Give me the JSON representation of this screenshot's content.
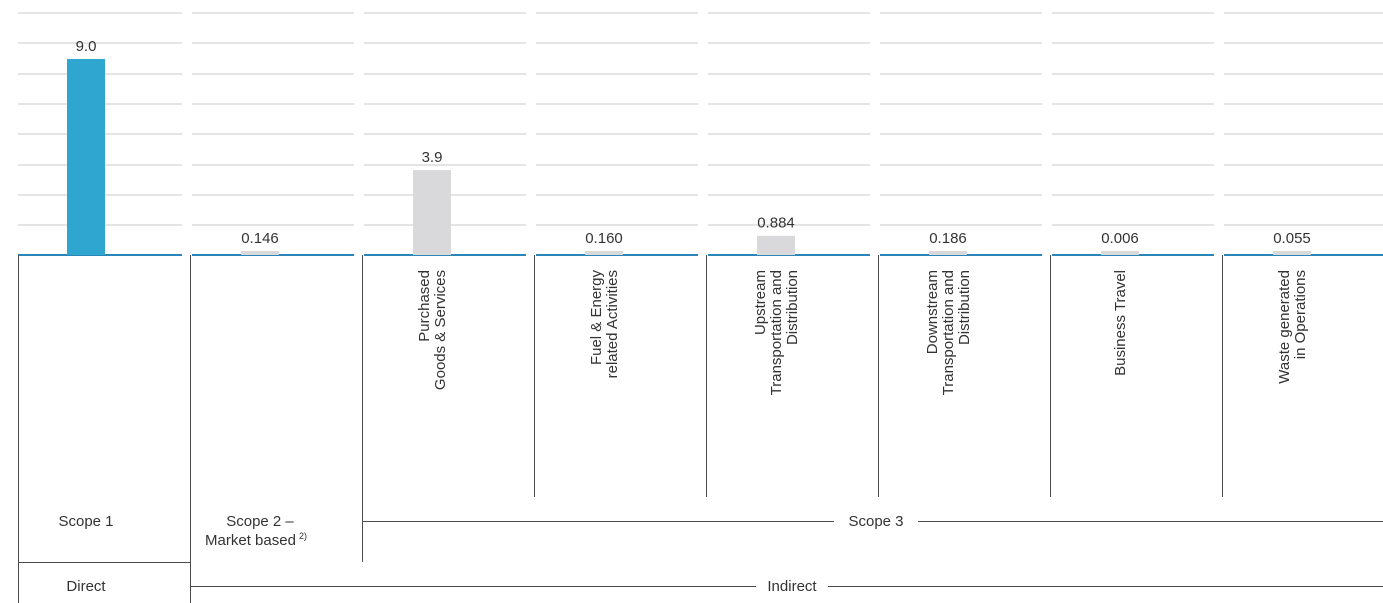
{
  "chart_data": {
    "type": "bar",
    "categories": [
      "",
      "",
      "Purchased\nGoods & Services",
      "Fuel & Energy\nrelated Activities",
      "Upstream\nTransportation and\nDistribution",
      "Downstream\nTransportation and\nDistribution",
      "Business Travel",
      "Waste generated\nin Operations"
    ],
    "values": [
      9.0,
      0.146,
      3.9,
      0.16,
      0.884,
      0.186,
      0.006,
      0.055
    ],
    "value_labels": [
      "9.0",
      "0.146",
      "3.9",
      "0.160",
      "0.884",
      "0.186",
      "0.006",
      "0.055"
    ],
    "highlight_index": 0,
    "ylim": [
      0,
      10
    ],
    "grid": true,
    "colors": {
      "highlight": "#2fa6cf",
      "bar": "#d9d9db",
      "baseline": "#2a86b8",
      "grid": "#c9c9c9"
    },
    "scopes": {
      "scope1": "Scope 1",
      "scope2": "Scope 2 –\nMarket based",
      "scope2_sup": "2)",
      "scope3": "Scope 3"
    },
    "groups": {
      "direct": "Direct",
      "indirect": "Indirect"
    }
  }
}
